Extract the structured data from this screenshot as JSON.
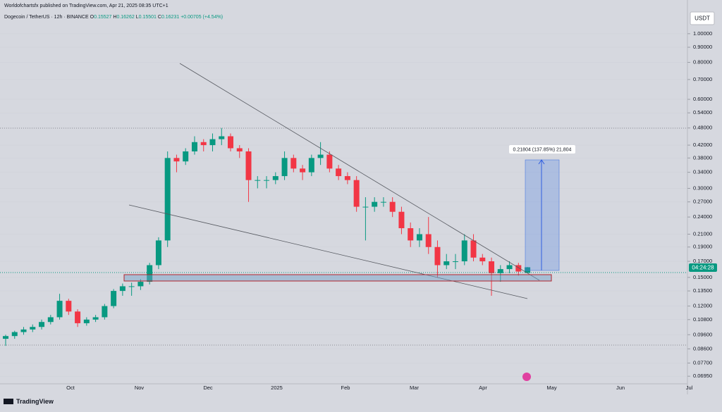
{
  "header": {
    "publisher": "Worldofchartsfx published on TradingView.com, Apr 21, 2025 08:35 UTC+1",
    "symbol": "Dogecoin / TetherUS · 12h · BINANCE",
    "o_label": "O",
    "o": "0.15527",
    "h_label": "H",
    "h": "0.16262",
    "l_label": "L",
    "l": "0.15501",
    "c_label": "C",
    "c": "0.16231",
    "change": "+0.00705 (+4.54%)"
  },
  "chart_data": {
    "type": "candlestick",
    "log_scale": true,
    "up_color": "#089981",
    "down_color": "#f23645",
    "open": [
      0.093,
      0.095,
      0.098,
      0.1,
      0.102,
      0.106,
      0.11,
      0.125,
      0.115,
      0.105,
      0.108,
      0.11,
      0.12,
      0.135,
      0.14,
      0.14,
      0.145,
      0.165,
      0.2,
      0.38,
      0.37,
      0.4,
      0.43,
      0.42,
      0.44,
      0.45,
      0.41,
      0.4,
      0.32,
      0.32,
      0.32,
      0.33,
      0.38,
      0.35,
      0.34,
      0.38,
      0.39,
      0.35,
      0.33,
      0.32,
      0.26,
      0.26,
      0.27,
      0.27,
      0.25,
      0.22,
      0.2,
      0.21,
      0.19,
      0.165,
      0.17,
      0.17,
      0.2,
      0.175,
      0.17,
      0.155,
      0.16,
      0.165,
      0.15527
    ],
    "high": [
      0.096,
      0.099,
      0.102,
      0.104,
      0.108,
      0.112,
      0.132,
      0.127,
      0.117,
      0.11,
      0.112,
      0.122,
      0.137,
      0.143,
      0.144,
      0.148,
      0.168,
      0.205,
      0.4,
      0.39,
      0.41,
      0.45,
      0.44,
      0.46,
      0.48,
      0.46,
      0.42,
      0.41,
      0.33,
      0.33,
      0.34,
      0.4,
      0.39,
      0.36,
      0.39,
      0.43,
      0.4,
      0.36,
      0.34,
      0.33,
      0.28,
      0.28,
      0.28,
      0.28,
      0.26,
      0.23,
      0.22,
      0.24,
      0.2,
      0.18,
      0.18,
      0.21,
      0.21,
      0.18,
      0.175,
      0.165,
      0.17,
      0.168,
      0.16262
    ],
    "low": [
      0.088,
      0.093,
      0.096,
      0.098,
      0.1,
      0.104,
      0.108,
      0.112,
      0.102,
      0.103,
      0.106,
      0.108,
      0.118,
      0.13,
      0.13,
      0.136,
      0.142,
      0.16,
      0.19,
      0.34,
      0.36,
      0.39,
      0.4,
      0.4,
      0.42,
      0.4,
      0.38,
      0.27,
      0.3,
      0.3,
      0.31,
      0.32,
      0.34,
      0.32,
      0.33,
      0.36,
      0.34,
      0.32,
      0.31,
      0.25,
      0.2,
      0.25,
      0.26,
      0.24,
      0.21,
      0.19,
      0.19,
      0.18,
      0.15,
      0.16,
      0.16,
      0.165,
      0.17,
      0.165,
      0.13,
      0.145,
      0.155,
      0.152,
      0.15501
    ],
    "close": [
      0.095,
      0.098,
      0.1,
      0.102,
      0.106,
      0.11,
      0.125,
      0.115,
      0.105,
      0.108,
      0.11,
      0.12,
      0.135,
      0.14,
      0.14,
      0.145,
      0.165,
      0.2,
      0.38,
      0.37,
      0.4,
      0.43,
      0.42,
      0.44,
      0.45,
      0.41,
      0.4,
      0.32,
      0.32,
      0.32,
      0.33,
      0.38,
      0.35,
      0.34,
      0.38,
      0.39,
      0.35,
      0.33,
      0.32,
      0.26,
      0.26,
      0.27,
      0.27,
      0.25,
      0.22,
      0.2,
      0.21,
      0.19,
      0.165,
      0.17,
      0.17,
      0.2,
      0.175,
      0.17,
      0.155,
      0.16,
      0.165,
      0.157,
      0.16231
    ],
    "ylim": [
      0.0655,
      1.3
    ],
    "yticks": [
      {
        "value": 1,
        "label": "1.00000"
      },
      {
        "value": 0.9,
        "label": "0.90000"
      },
      {
        "value": 0.8,
        "label": "0.80000"
      },
      {
        "value": 0.7,
        "label": "0.70000"
      },
      {
        "value": 0.6,
        "label": "0.60000"
      },
      {
        "value": 0.54,
        "label": "0.54000"
      },
      {
        "value": 0.48,
        "label": "0.48000"
      },
      {
        "value": 0.42,
        "label": "0.42000"
      },
      {
        "value": 0.38,
        "label": "0.38000"
      },
      {
        "value": 0.34,
        "label": "0.34000"
      },
      {
        "value": 0.3,
        "label": "0.30000"
      },
      {
        "value": 0.27,
        "label": "0.27000"
      },
      {
        "value": 0.24,
        "label": "0.24000"
      },
      {
        "value": 0.21,
        "label": "0.21000"
      },
      {
        "value": 0.19,
        "label": "0.19000"
      },
      {
        "value": 0.17,
        "label": "0.17000"
      },
      {
        "value": 0.15,
        "label": "0.15000"
      },
      {
        "value": 0.135,
        "label": "0.13500"
      },
      {
        "value": 0.12,
        "label": "0.12000"
      },
      {
        "value": 0.108,
        "label": "0.10800"
      },
      {
        "value": 0.096,
        "label": "0.09600"
      },
      {
        "value": 0.086,
        "label": "0.08600"
      },
      {
        "value": 0.077,
        "label": "0.07700"
      },
      {
        "value": 0.0695,
        "label": "0.06950"
      }
    ],
    "x_labels": [
      "Oct",
      "Nov",
      "Dec",
      "2025",
      "Feb",
      "Mar",
      "Apr",
      "May",
      "Jun",
      "Jul"
    ],
    "measure_label": "0.21804 (137.85%) 21,804",
    "countdown": "04:24:28",
    "currency": "USDT"
  },
  "footer": {
    "brand": "TradingView"
  }
}
